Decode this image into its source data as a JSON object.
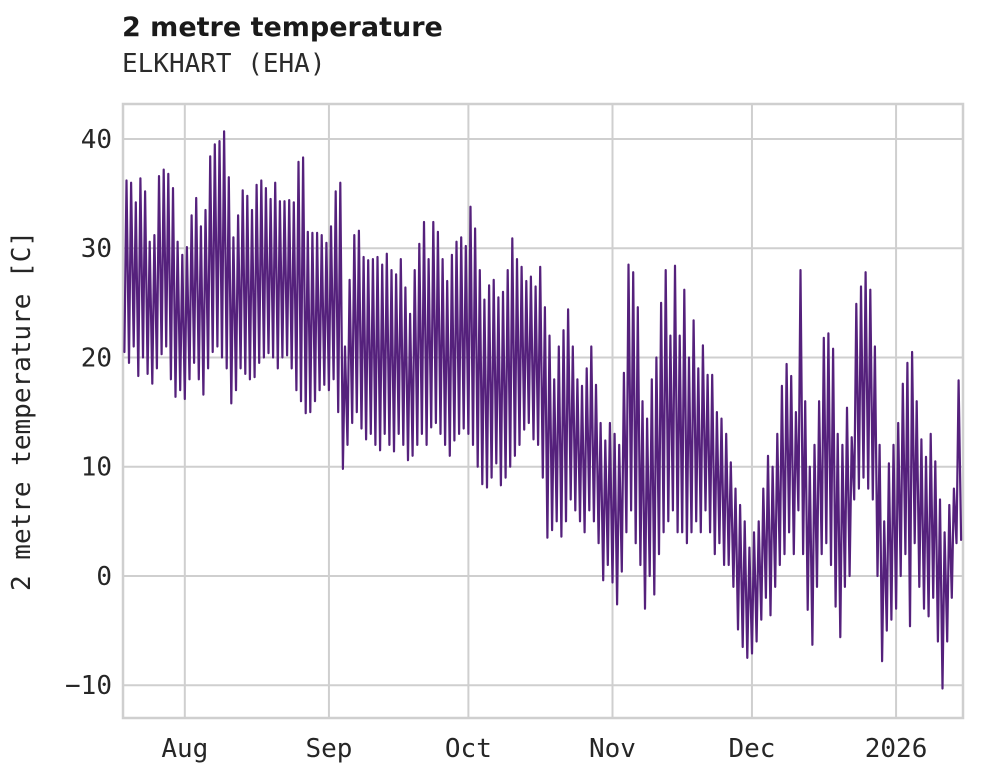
{
  "header": {
    "title": "2 metre temperature",
    "subtitle": "ELKHART (EHA)"
  },
  "chart_data": {
    "type": "line",
    "title": "2 metre temperature",
    "subtitle": "ELKHART (EHA)",
    "xlabel": "",
    "ylabel": "2 metre temperature [C]",
    "grid": "on",
    "legend": "none",
    "line_color": "#55217C",
    "grid_color": "#cfcfcf",
    "text_color": "#262626",
    "background_color": "#ffffff",
    "ylim": [
      -13.0,
      43.2
    ],
    "y_ticks": [
      {
        "value": -10,
        "label": "−10"
      },
      {
        "value": 0,
        "label": "0"
      },
      {
        "value": 10,
        "label": "10"
      },
      {
        "value": 20,
        "label": "20"
      },
      {
        "value": 30,
        "label": "30"
      },
      {
        "value": 40,
        "label": "40"
      }
    ],
    "x_domain": [
      0,
      180.7
    ],
    "x_unit": "days (index 0 = start of plotted record, ~2 weeks before Aug)",
    "x_ticks": [
      {
        "pos": 13.3,
        "label": "Aug"
      },
      {
        "pos": 44.3,
        "label": "Sep"
      },
      {
        "pos": 74.3,
        "label": "Oct"
      },
      {
        "pos": 105.3,
        "label": "Nov"
      },
      {
        "pos": 135.3,
        "label": "Dec"
      },
      {
        "pos": 166.3,
        "label": "2026"
      }
    ],
    "series": [
      {
        "name": "2 metre temperature",
        "sampling": "daily [min, max] pairs; line zigzags min(early day) to max(late day)",
        "daily_min_max": [
          [
            20.5,
            36.2
          ],
          [
            19.5,
            36.0
          ],
          [
            21,
            34.2
          ],
          [
            18.3,
            36.4
          ],
          [
            20,
            35.2
          ],
          [
            18.5,
            30.6
          ],
          [
            17.6,
            31.2
          ],
          [
            19,
            36.6
          ],
          [
            20.3,
            37.2
          ],
          [
            21,
            36.8
          ],
          [
            18,
            35.5
          ],
          [
            16.4,
            30.6
          ],
          [
            17,
            29.4
          ],
          [
            16.2,
            30.1
          ],
          [
            18,
            33
          ],
          [
            19.5,
            34.6
          ],
          [
            18,
            32
          ],
          [
            16.6,
            33.5
          ],
          [
            19,
            38.4
          ],
          [
            20.5,
            39.5
          ],
          [
            21,
            39.8
          ],
          [
            20,
            40.7
          ],
          [
            19,
            36.5
          ],
          [
            15.8,
            31
          ],
          [
            17,
            33
          ],
          [
            19,
            35.3
          ],
          [
            18.5,
            34.8
          ],
          [
            18,
            33.5
          ],
          [
            18.2,
            35.8
          ],
          [
            19.5,
            36.2
          ],
          [
            20,
            35.5
          ],
          [
            20.4,
            34.5
          ],
          [
            20,
            36.0
          ],
          [
            19,
            34.3
          ],
          [
            20,
            34.3
          ],
          [
            20.2,
            34.4
          ],
          [
            19,
            34.2
          ],
          [
            17,
            37.9
          ],
          [
            16,
            38.3
          ],
          [
            14.9,
            31.5
          ],
          [
            15,
            31.4
          ],
          [
            16,
            31.4
          ],
          [
            17,
            31.2
          ],
          [
            17.5,
            30.5
          ],
          [
            17,
            32
          ],
          [
            18,
            35.2
          ],
          [
            15,
            36.0
          ],
          [
            9.8,
            21
          ],
          [
            12,
            27.1
          ],
          [
            14,
            31.2
          ],
          [
            15,
            31.6
          ],
          [
            13.5,
            29.2
          ],
          [
            12.5,
            28.9
          ],
          [
            13,
            29.0
          ],
          [
            12,
            29.2
          ],
          [
            11.5,
            28.5
          ],
          [
            13,
            29.5
          ],
          [
            12,
            28
          ],
          [
            11.4,
            27.6
          ],
          [
            13,
            29
          ],
          [
            12,
            26.4
          ],
          [
            10.6,
            24
          ],
          [
            11,
            28
          ],
          [
            12,
            30.4
          ],
          [
            13,
            32.4
          ],
          [
            12,
            29
          ],
          [
            13.6,
            32.4
          ],
          [
            14,
            31.5
          ],
          [
            13,
            29
          ],
          [
            12,
            27
          ],
          [
            11,
            29.4
          ],
          [
            12.4,
            30.6
          ],
          [
            13,
            31
          ],
          [
            13.5,
            30.2
          ],
          [
            13,
            33.8
          ],
          [
            12,
            31.8
          ],
          [
            10,
            28
          ],
          [
            8.4,
            25.3
          ],
          [
            8.1,
            26.6
          ],
          [
            9,
            27.1
          ],
          [
            10.3,
            25.5
          ],
          [
            8.3,
            26
          ],
          [
            9,
            28
          ],
          [
            10,
            30.9
          ],
          [
            11,
            29
          ],
          [
            12,
            28.3
          ],
          [
            13.4,
            27.0
          ],
          [
            14,
            27.4
          ],
          [
            12.5,
            26.5
          ],
          [
            12,
            28.3
          ],
          [
            9,
            24.6
          ],
          [
            3.5,
            22
          ],
          [
            4.2,
            18
          ],
          [
            5,
            21
          ],
          [
            3.6,
            22.5
          ],
          [
            5,
            24.4
          ],
          [
            7,
            21
          ],
          [
            6,
            18
          ],
          [
            5,
            17.4
          ],
          [
            4,
            19
          ],
          [
            6,
            21
          ],
          [
            5,
            17.5
          ],
          [
            3,
            14
          ],
          [
            -0.4,
            12.4
          ],
          [
            1,
            14
          ],
          [
            -0.6,
            13
          ],
          [
            -2.6,
            12
          ],
          [
            0.4,
            18.6
          ],
          [
            4,
            28.5
          ],
          [
            6,
            27.8
          ],
          [
            3,
            24.6
          ],
          [
            1,
            16
          ],
          [
            -3,
            14.4
          ],
          [
            0,
            18
          ],
          [
            -1.7,
            20
          ],
          [
            2,
            25
          ],
          [
            4,
            28.0
          ],
          [
            5,
            22
          ],
          [
            6,
            28.4
          ],
          [
            4,
            22
          ],
          [
            4,
            26.2
          ],
          [
            3,
            20
          ],
          [
            4,
            23.4
          ],
          [
            5,
            19
          ],
          [
            4,
            21.1
          ],
          [
            6,
            18.4
          ],
          [
            4,
            18.4
          ],
          [
            2,
            15
          ],
          [
            3,
            14.4
          ],
          [
            1,
            13
          ],
          [
            1,
            10.4
          ],
          [
            -1,
            8
          ],
          [
            -4.9,
            6.5
          ],
          [
            -6.5,
            5
          ],
          [
            -7.5,
            2.6
          ],
          [
            -7.1,
            4
          ],
          [
            -6,
            5
          ],
          [
            -4,
            8
          ],
          [
            -2,
            11
          ],
          [
            -3.6,
            10
          ],
          [
            -1,
            13
          ],
          [
            1,
            17.4
          ],
          [
            2,
            19.4
          ],
          [
            4,
            18.3
          ],
          [
            2,
            15
          ],
          [
            6,
            28.0
          ],
          [
            2,
            16
          ],
          [
            -3.1,
            10
          ],
          [
            -6.3,
            12
          ],
          [
            -1,
            16
          ],
          [
            2,
            21.8
          ],
          [
            3,
            22.2
          ],
          [
            1,
            20.8
          ],
          [
            -2.8,
            13
          ],
          [
            -5.6,
            12
          ],
          [
            -1,
            15.4
          ],
          [
            0,
            12.7
          ],
          [
            7,
            24.9
          ],
          [
            8,
            26.5
          ],
          [
            9,
            27.8
          ],
          [
            8,
            26.2
          ],
          [
            7,
            21
          ],
          [
            0,
            12
          ],
          [
            -7.8,
            5
          ],
          [
            -5,
            10.3
          ],
          [
            -4,
            12
          ],
          [
            -3,
            14
          ],
          [
            0,
            17.6
          ],
          [
            2,
            19.5
          ],
          [
            -4.6,
            20.5
          ],
          [
            3,
            16
          ],
          [
            -1,
            12.5
          ],
          [
            -3,
            10.9
          ],
          [
            -3.7,
            13
          ],
          [
            -2,
            10.5
          ],
          [
            -6,
            7
          ],
          [
            -10.3,
            4
          ],
          [
            -6,
            6.5
          ],
          [
            -2,
            8
          ],
          [
            3,
            17.9
          ],
          [
            3.3,
            10
          ]
        ]
      }
    ]
  }
}
